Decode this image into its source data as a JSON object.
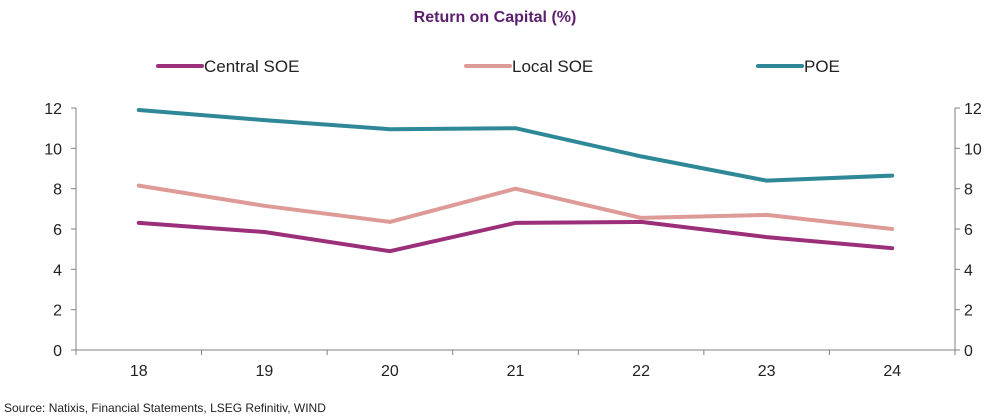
{
  "chart_data": {
    "type": "line",
    "title": "Return on Capital (%)",
    "categories": [
      "18",
      "19",
      "20",
      "21",
      "22",
      "23",
      "24"
    ],
    "series": [
      {
        "name": "Central SOE",
        "color": "#9b2f7a",
        "values": [
          6.3,
          5.85,
          4.9,
          6.3,
          6.35,
          5.6,
          5.05
        ]
      },
      {
        "name": "Local SOE",
        "color": "#de9a96",
        "values": [
          8.15,
          7.15,
          6.35,
          8.0,
          6.55,
          6.7,
          6.0
        ]
      },
      {
        "name": "POE",
        "color": "#2f8897",
        "values": [
          11.9,
          11.4,
          10.95,
          11.0,
          9.6,
          8.4,
          8.65
        ]
      }
    ],
    "ylim": [
      0,
      12
    ],
    "yticks": [
      "0",
      "2",
      "4",
      "6",
      "8",
      "10",
      "12"
    ],
    "xlabel": "",
    "ylabel": "",
    "grid": false,
    "legend_position": "top"
  },
  "source_note": "Source: Natixis, Financial Statements, LSEG Refinitiv, WIND"
}
